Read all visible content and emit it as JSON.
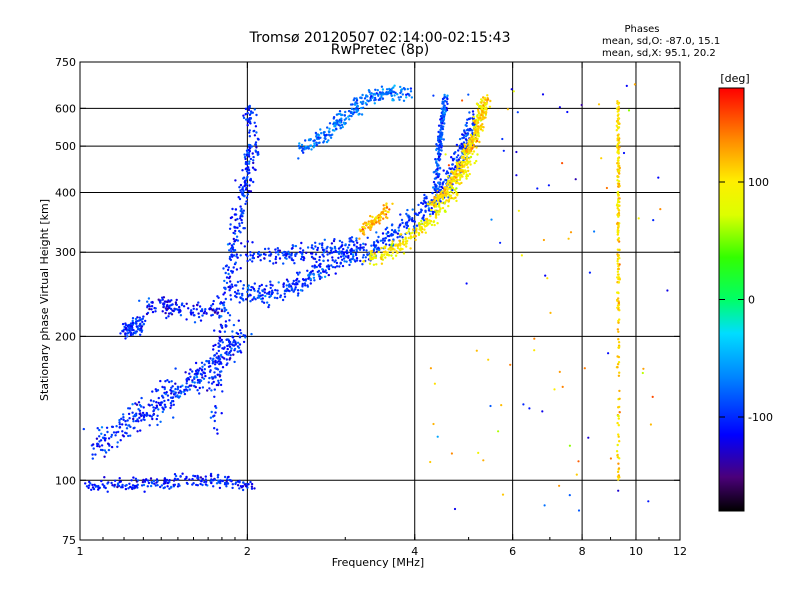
{
  "chart_data": {
    "type": "scatter",
    "title": "Tromsø 20120507 02:14:00-02:15:43",
    "subtitle": "RwPretec (8p)",
    "xlabel": "Frequency [MHz]",
    "ylabel": "Stationary phase Virtual Height [km]",
    "x_scale": "log",
    "y_scale": "log",
    "xlim": [
      1,
      12
    ],
    "ylim": [
      75,
      750
    ],
    "x_ticks": [
      "1",
      "2",
      "4",
      "6",
      "8",
      "10",
      "12"
    ],
    "y_ticks": [
      "75",
      "100",
      "200",
      "300",
      "400",
      "500",
      "600",
      "750"
    ],
    "x_tick_values": [
      1,
      2,
      4,
      6,
      8,
      10,
      12
    ],
    "y_tick_values": [
      75,
      100,
      200,
      300,
      400,
      500,
      600,
      750
    ],
    "grid_x": [
      2,
      4,
      6,
      8,
      10
    ],
    "grid_y": [
      100,
      200,
      300,
      400,
      500,
      600
    ],
    "legend": {
      "title": "Phases",
      "lines": [
        "mean, sd,O: -87.0, 15.1",
        "mean, sd,X:  95.1, 20.2"
      ]
    },
    "colorbar": {
      "label": "[deg]",
      "min": -180,
      "max": 180,
      "ticks": [
        "100",
        "0",
        "-100"
      ],
      "tick_values": [
        100,
        0,
        -100
      ]
    },
    "traces": [
      {
        "points": [
          [
            1.05,
            118
          ],
          [
            1.15,
            125
          ],
          [
            1.25,
            135
          ],
          [
            1.35,
            142
          ],
          [
            1.45,
            150
          ],
          [
            1.55,
            158
          ],
          [
            1.65,
            165
          ],
          [
            1.75,
            175
          ],
          [
            1.85,
            190
          ],
          [
            1.95,
            200
          ]
        ],
        "phase": -100,
        "spread": 0.07
      },
      {
        "points": [
          [
            1.02,
            97
          ],
          [
            1.2,
            98
          ],
          [
            1.4,
            99
          ],
          [
            1.6,
            100
          ],
          [
            1.8,
            100
          ],
          [
            2.05,
            97
          ]
        ],
        "phase": -105,
        "spread": 0.03
      },
      {
        "points": [
          [
            1.75,
            130
          ],
          [
            1.8,
            200
          ],
          [
            1.85,
            260
          ],
          [
            1.9,
            320
          ],
          [
            1.95,
            380
          ],
          [
            2.0,
            440
          ],
          [
            2.05,
            500
          ],
          [
            2.0,
            620
          ]
        ],
        "phase": -100,
        "spread": 0.05
      },
      {
        "points": [
          [
            1.3,
            235
          ],
          [
            1.45,
            230
          ],
          [
            1.6,
            225
          ],
          [
            1.8,
            232
          ]
        ],
        "phase": -110,
        "spread": 0.04
      },
      {
        "points": [
          [
            1.2,
            205
          ],
          [
            1.25,
            210
          ],
          [
            1.3,
            215
          ]
        ],
        "phase": -100,
        "spread": 0.04
      },
      {
        "points": [
          [
            1.9,
            250
          ],
          [
            2.1,
            245
          ],
          [
            2.3,
            250
          ],
          [
            2.5,
            260
          ],
          [
            2.7,
            275
          ],
          [
            3.0,
            290
          ],
          [
            3.3,
            300
          ],
          [
            3.6,
            320
          ],
          [
            3.9,
            345
          ],
          [
            4.2,
            370
          ],
          [
            4.4,
            390
          ],
          [
            4.6,
            420
          ],
          [
            4.8,
            470
          ],
          [
            4.95,
            520
          ],
          [
            5.1,
            580
          ]
        ],
        "phase": -95,
        "spread": 0.05
      },
      {
        "points": [
          [
            2.0,
            300
          ],
          [
            2.3,
            295
          ],
          [
            2.6,
            300
          ],
          [
            2.9,
            305
          ],
          [
            3.2,
            310
          ]
        ],
        "phase": -100,
        "spread": 0.05
      },
      {
        "points": [
          [
            2.5,
            490
          ],
          [
            2.7,
            520
          ],
          [
            2.9,
            560
          ],
          [
            3.1,
            600
          ],
          [
            3.3,
            630
          ],
          [
            3.6,
            645
          ],
          [
            3.9,
            650
          ]
        ],
        "phase": -75,
        "spread": 0.04
      },
      {
        "points": [
          [
            3.3,
            290
          ],
          [
            3.6,
            300
          ],
          [
            3.9,
            320
          ],
          [
            4.2,
            345
          ],
          [
            4.5,
            375
          ],
          [
            4.8,
            420
          ],
          [
            5.0,
            470
          ],
          [
            5.2,
            540
          ],
          [
            5.3,
            620
          ]
        ],
        "phase": 95,
        "spread": 0.04
      },
      {
        "points": [
          [
            4.3,
            380
          ],
          [
            4.5,
            400
          ],
          [
            4.7,
            430
          ],
          [
            4.9,
            470
          ],
          [
            5.1,
            520
          ],
          [
            5.3,
            580
          ],
          [
            5.4,
            640
          ]
        ],
        "phase": 110,
        "spread": 0.03
      },
      {
        "points": [
          [
            3.2,
            330
          ],
          [
            3.4,
            350
          ],
          [
            3.6,
            370
          ]
        ],
        "phase": 120,
        "spread": 0.03
      },
      {
        "points": [
          [
            4.35,
            400
          ],
          [
            4.4,
            460
          ],
          [
            4.45,
            520
          ],
          [
            4.5,
            580
          ],
          [
            4.55,
            640
          ]
        ],
        "phase": -90,
        "spread": 0.02
      },
      {
        "points": [
          [
            9.3,
            100
          ],
          [
            9.3,
            200
          ],
          [
            9.3,
            300
          ],
          [
            9.3,
            400
          ],
          [
            9.3,
            500
          ],
          [
            9.3,
            620
          ]
        ],
        "phase": 110,
        "spread": 0.01
      }
    ]
  }
}
